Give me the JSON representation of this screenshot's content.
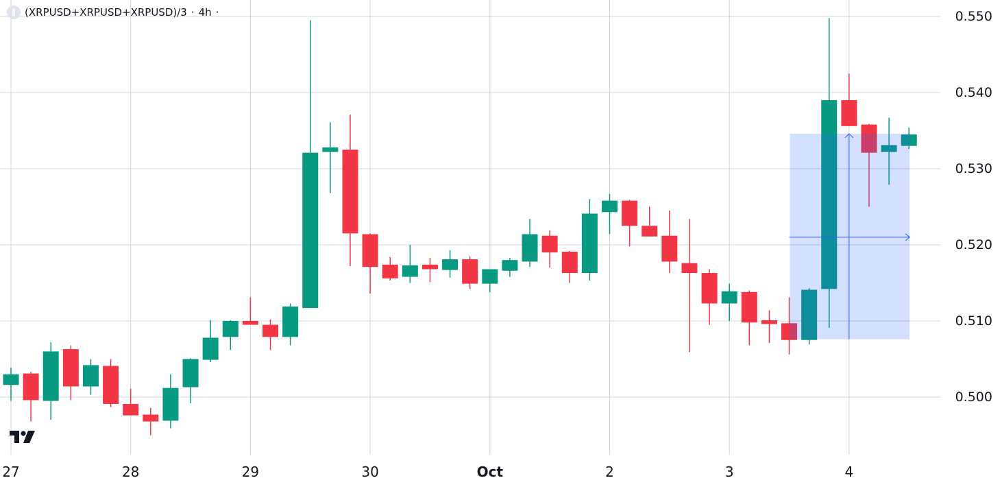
{
  "legend": {
    "symbol": "(XRPUSD+XRPUSD+XRPUSD)/3",
    "separator1": "·",
    "interval": "4h",
    "separator2": "·"
  },
  "colors": {
    "up": "#089981",
    "down": "#f23645",
    "grid": "#d1d4dc",
    "box_fill": "rgba(41, 98, 255, 0.2)",
    "box_line": "#2962ff",
    "text": "#131722"
  },
  "price_axis": {
    "labels": [
      "0.550",
      "0.540",
      "0.530",
      "0.520",
      "0.510",
      "0.500"
    ]
  },
  "time_axis": {
    "labels": [
      {
        "text": "27",
        "bold": false
      },
      {
        "text": "28",
        "bold": false
      },
      {
        "text": "29",
        "bold": false
      },
      {
        "text": "30",
        "bold": false
      },
      {
        "text": "Oct",
        "bold": true
      },
      {
        "text": "2",
        "bold": false
      },
      {
        "text": "3",
        "bold": false
      },
      {
        "text": "4",
        "bold": false
      }
    ]
  },
  "chart_data": {
    "type": "candlestick",
    "title": "(XRPUSD+XRPUSD+XRPUSD)/3 · 4h",
    "xlabel": "",
    "ylabel": "",
    "ylim": [
      0.4945,
      0.5505
    ],
    "grid": true,
    "y_ticks": [
      0.5,
      0.51,
      0.52,
      0.53,
      0.54,
      0.55
    ],
    "x_ticks": [
      "27",
      "28",
      "29",
      "30",
      "Oct",
      "2",
      "3",
      "4"
    ],
    "candles_per_day": 6,
    "first_candle_day_index": 0,
    "ohlc": [
      [
        0.5016,
        0.5039,
        0.4995,
        0.503
      ],
      [
        0.5031,
        0.5033,
        0.4968,
        0.4996
      ],
      [
        0.4995,
        0.5072,
        0.497,
        0.506
      ],
      [
        0.5063,
        0.5068,
        0.4996,
        0.5014
      ],
      [
        0.5014,
        0.505,
        0.5003,
        0.5042
      ],
      [
        0.5041,
        0.505,
        0.4987,
        0.4991
      ],
      [
        0.4991,
        0.5011,
        0.4976,
        0.4976
      ],
      [
        0.4977,
        0.4986,
        0.495,
        0.4968
      ],
      [
        0.4969,
        0.503,
        0.4959,
        0.5012
      ],
      [
        0.5013,
        0.5051,
        0.4992,
        0.505
      ],
      [
        0.5049,
        0.5101,
        0.5046,
        0.5078
      ],
      [
        0.5079,
        0.5101,
        0.5062,
        0.51
      ],
      [
        0.51,
        0.5131,
        0.5095,
        0.5095
      ],
      [
        0.5095,
        0.5102,
        0.5062,
        0.5079
      ],
      [
        0.5079,
        0.5123,
        0.5068,
        0.5119
      ],
      [
        0.5117,
        0.5495,
        0.5117,
        0.5321
      ],
      [
        0.5322,
        0.5361,
        0.5268,
        0.5328
      ],
      [
        0.5325,
        0.5371,
        0.5172,
        0.5215
      ],
      [
        0.5214,
        0.5215,
        0.5136,
        0.5171
      ],
      [
        0.5174,
        0.5184,
        0.5153,
        0.5156
      ],
      [
        0.5158,
        0.52,
        0.515,
        0.5173
      ],
      [
        0.5174,
        0.5183,
        0.5151,
        0.5168
      ],
      [
        0.5167,
        0.5193,
        0.5157,
        0.5181
      ],
      [
        0.5181,
        0.5185,
        0.5142,
        0.5149
      ],
      [
        0.5149,
        0.5168,
        0.5138,
        0.5168
      ],
      [
        0.5166,
        0.5183,
        0.5158,
        0.518
      ],
      [
        0.5178,
        0.5234,
        0.5171,
        0.5214
      ],
      [
        0.5212,
        0.5219,
        0.517,
        0.519
      ],
      [
        0.5191,
        0.5192,
        0.515,
        0.5163
      ],
      [
        0.5163,
        0.526,
        0.5153,
        0.5241
      ],
      [
        0.5243,
        0.5267,
        0.5214,
        0.5258
      ],
      [
        0.5258,
        0.5259,
        0.5198,
        0.5225
      ],
      [
        0.5225,
        0.525,
        0.5211,
        0.5211
      ],
      [
        0.5212,
        0.5245,
        0.5163,
        0.5178
      ],
      [
        0.5176,
        0.5234,
        0.5059,
        0.5163
      ],
      [
        0.5163,
        0.5168,
        0.5095,
        0.5123
      ],
      [
        0.5123,
        0.5149,
        0.51,
        0.5139
      ],
      [
        0.5138,
        0.514,
        0.5068,
        0.5098
      ],
      [
        0.5101,
        0.5114,
        0.5071,
        0.5096
      ],
      [
        0.5097,
        0.5131,
        0.5056,
        0.5075
      ],
      [
        0.5075,
        0.5143,
        0.5069,
        0.5141
      ],
      [
        0.5142,
        0.5498,
        0.5091,
        0.539
      ],
      [
        0.539,
        0.5425,
        0.5356,
        0.5356
      ],
      [
        0.5358,
        0.5359,
        0.525,
        0.5321
      ],
      [
        0.5322,
        0.5367,
        0.5279,
        0.5331
      ],
      [
        0.533,
        0.5354,
        0.5326,
        0.5345
      ]
    ],
    "annotations": [
      {
        "type": "price_range_box",
        "start_candle": 39,
        "end_candle": 45,
        "top_price": 0.5346,
        "bottom_price": 0.5076,
        "h_arrow_price": 0.521,
        "v_arrow_candle": 42
      }
    ]
  }
}
